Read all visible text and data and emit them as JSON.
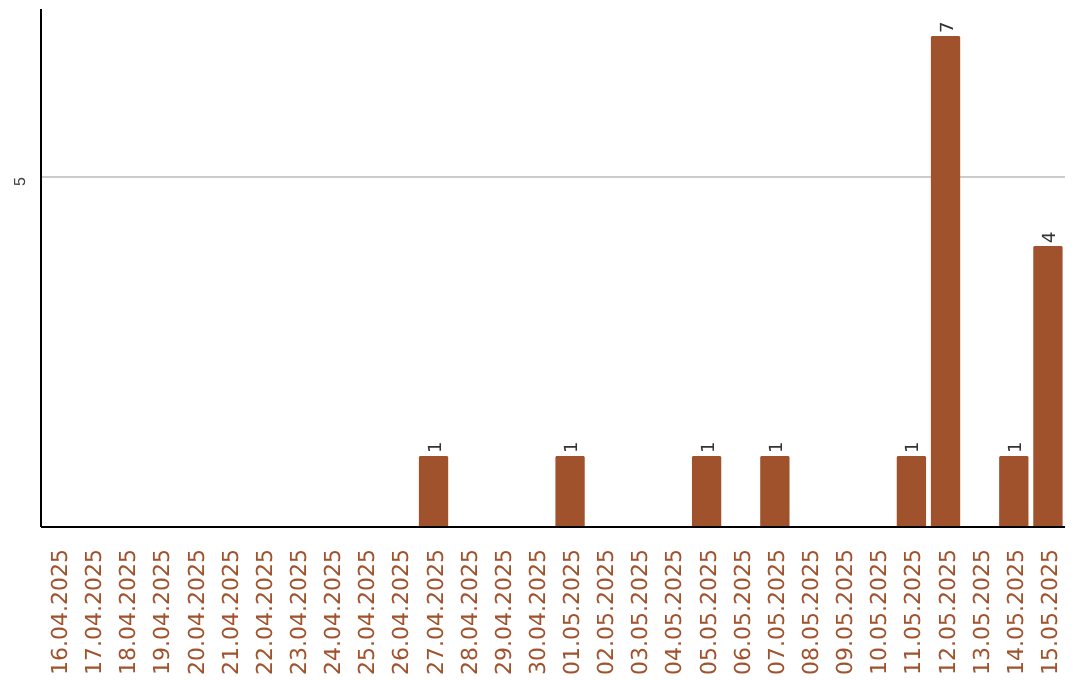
{
  "chart_data": {
    "type": "bar",
    "categories": [
      "16.04.2025",
      "17.04.2025",
      "18.04.2025",
      "19.04.2025",
      "20.04.2025",
      "21.04.2025",
      "22.04.2025",
      "23.04.2025",
      "24.04.2025",
      "25.04.2025",
      "26.04.2025",
      "27.04.2025",
      "28.04.2025",
      "29.04.2025",
      "30.04.2025",
      "01.05.2025",
      "02.05.2025",
      "03.05.2025",
      "04.05.2025",
      "05.05.2025",
      "06.05.2025",
      "07.05.2025",
      "08.05.2025",
      "09.05.2025",
      "10.05.2025",
      "11.05.2025",
      "12.05.2025",
      "13.05.2025",
      "14.05.2025",
      "15.05.2025"
    ],
    "values": [
      0,
      0,
      0,
      0,
      0,
      0,
      0,
      0,
      0,
      0,
      0,
      1,
      0,
      0,
      0,
      1,
      0,
      0,
      0,
      1,
      0,
      1,
      0,
      0,
      0,
      1,
      7,
      0,
      1,
      4
    ],
    "color": "#a0522d",
    "ylim": [
      0,
      7.4
    ],
    "yticks": [
      5
    ],
    "grid": "y",
    "value_labels": [
      null,
      null,
      null,
      null,
      null,
      null,
      null,
      null,
      null,
      null,
      null,
      "1",
      null,
      null,
      null,
      "1",
      null,
      null,
      null,
      "1",
      null,
      "1",
      null,
      null,
      null,
      "1",
      "7",
      null,
      "1",
      "4"
    ]
  }
}
